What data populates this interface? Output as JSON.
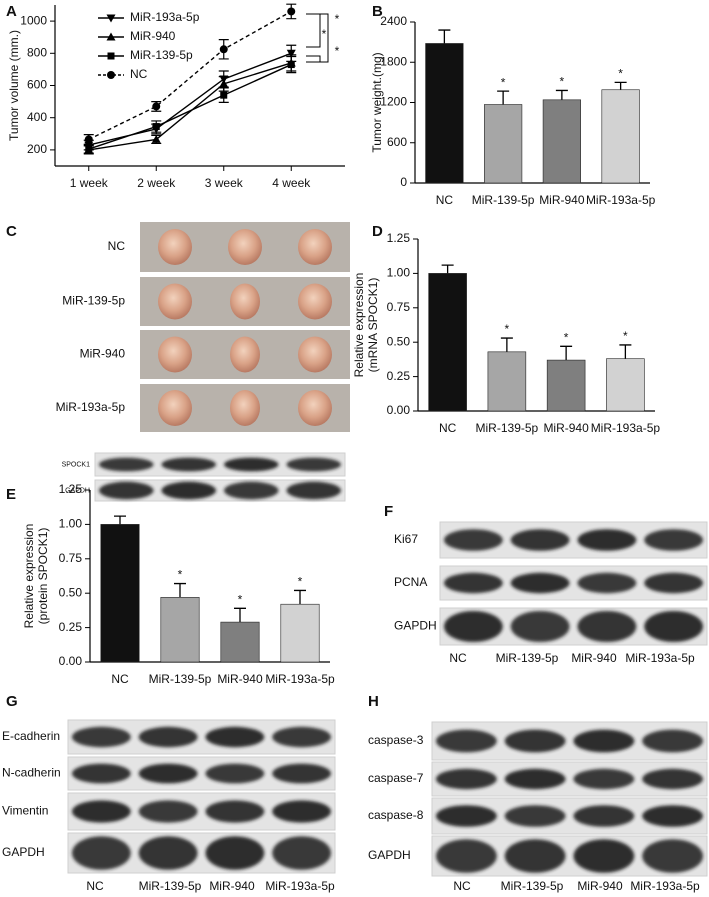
{
  "chart_data": [
    {
      "type": "line",
      "panel_label": "A",
      "ylabel": "Tumor volume (mm.)",
      "categories": [
        "1 week",
        "2 week",
        "3 week",
        "4 week"
      ],
      "ylim": [
        100,
        1100
      ],
      "yticks": [
        200,
        400,
        600,
        800,
        1000
      ],
      "series": [
        {
          "name": "MiR-193a-5p",
          "color": "#000000",
          "marker": "triangle-down",
          "linestyle": "solid",
          "values": [
            230,
            330,
            640,
            800
          ],
          "errors": [
            30,
            30,
            50,
            50
          ]
        },
        {
          "name": "MiR-940",
          "color": "#000000",
          "marker": "triangle-up",
          "linestyle": "solid",
          "values": [
            200,
            265,
            610,
            740
          ],
          "errors": [
            25,
            25,
            45,
            50
          ]
        },
        {
          "name": "MiR-139-5p",
          "color": "#000000",
          "marker": "square",
          "linestyle": "solid",
          "values": [
            205,
            345,
            540,
            730
          ],
          "errors": [
            25,
            35,
            45,
            50
          ]
        },
        {
          "name": "NC",
          "color": "#000000",
          "marker": "circle",
          "linestyle": "dashed",
          "values": [
            265,
            470,
            825,
            1060
          ],
          "errors": [
            30,
            30,
            60,
            45
          ]
        }
      ],
      "annotations": [
        "*",
        "*",
        "*"
      ]
    },
    {
      "type": "bar",
      "panel_label": "B",
      "ylabel": "Tumor weight.(mg)",
      "categories": [
        "NC",
        "MiR-139-5p",
        "MiR-940",
        "MiR-193a-5p"
      ],
      "values": [
        2080,
        1170,
        1240,
        1390
      ],
      "errors": [
        200,
        200,
        140,
        110
      ],
      "colors": [
        "#111111",
        "#a6a6a6",
        "#7f7f7f",
        "#d2d2d2"
      ],
      "ylim": [
        0,
        2400
      ],
      "yticks": [
        0,
        600,
        1200,
        1800,
        2400
      ],
      "annotations": [
        "*",
        "*",
        "*"
      ]
    },
    {
      "type": "bar",
      "panel_label": "D",
      "ylabel": [
        "Relative expression",
        "(mRNA SPOCK1)"
      ],
      "categories": [
        "NC",
        "MiR-139-5p",
        "MiR-940",
        "MiR-193a-5p"
      ],
      "values": [
        1.0,
        0.43,
        0.37,
        0.38
      ],
      "errors": [
        0.06,
        0.1,
        0.1,
        0.1
      ],
      "colors": [
        "#111111",
        "#a6a6a6",
        "#7f7f7f",
        "#d2d2d2"
      ],
      "ylim": [
        0,
        1.25
      ],
      "yticks": [
        {
          "value": 0,
          "label": "0.00"
        },
        {
          "value": 0.25,
          "label": "0.25"
        },
        {
          "value": 0.5,
          "label": "0.50"
        },
        {
          "value": 0.75,
          "label": "0.75"
        },
        {
          "value": 1,
          "label": "1.00"
        },
        {
          "value": 1.25,
          "label": "1.25"
        }
      ],
      "annotations": [
        "*",
        "*",
        "*"
      ]
    },
    {
      "type": "bar",
      "panel_label": "E",
      "ylabel": [
        "Relative expression",
        "(protein SPOCK1)"
      ],
      "categories": [
        "NC",
        "MiR-139-5p",
        "MiR-940",
        "MiR-193a-5p"
      ],
      "values": [
        1.0,
        0.47,
        0.29,
        0.42
      ],
      "errors": [
        0.06,
        0.1,
        0.1,
        0.1
      ],
      "colors": [
        "#111111",
        "#a6a6a6",
        "#7f7f7f",
        "#d2d2d2"
      ],
      "ylim": [
        0,
        1.25
      ],
      "yticks": [
        {
          "value": 0,
          "label": "0.00"
        },
        {
          "value": 0.25,
          "label": "0.25"
        },
        {
          "value": 0.5,
          "label": "0.50"
        },
        {
          "value": 0.75,
          "label": "0.75"
        },
        {
          "value": 1,
          "label": "1.00"
        },
        {
          "value": 1.25,
          "label": "1.25"
        }
      ],
      "annotations": [
        "*",
        "*",
        "*"
      ],
      "blot_rows": [
        "SPOCK1",
        "GAPDH"
      ]
    }
  ],
  "panels": {
    "C": {
      "panel_label": "C",
      "rows": [
        "NC",
        "MiR-139-5p",
        "MiR-940",
        "MiR-193a-5p"
      ]
    },
    "F": {
      "panel_label": "F",
      "rows": [
        "Ki67",
        "PCNA",
        "GAPDH"
      ],
      "lanes": [
        "NC",
        "MiR-139-5p",
        "MiR-940",
        "MiR-193a-5p"
      ]
    },
    "G": {
      "panel_label": "G",
      "rows": [
        "E-cadherin",
        "N-cadherin",
        "Vimentin",
        "GAPDH"
      ],
      "lanes": [
        "NC",
        "MiR-139-5p",
        "MiR-940",
        "MiR-193a-5p"
      ]
    },
    "H": {
      "panel_label": "H",
      "rows": [
        "caspase-3",
        "caspase-7",
        "caspase-8",
        "GAPDH"
      ],
      "lanes": [
        "NC",
        "MiR-139-5p",
        "MiR-940",
        "MiR-193a-5p"
      ]
    }
  }
}
